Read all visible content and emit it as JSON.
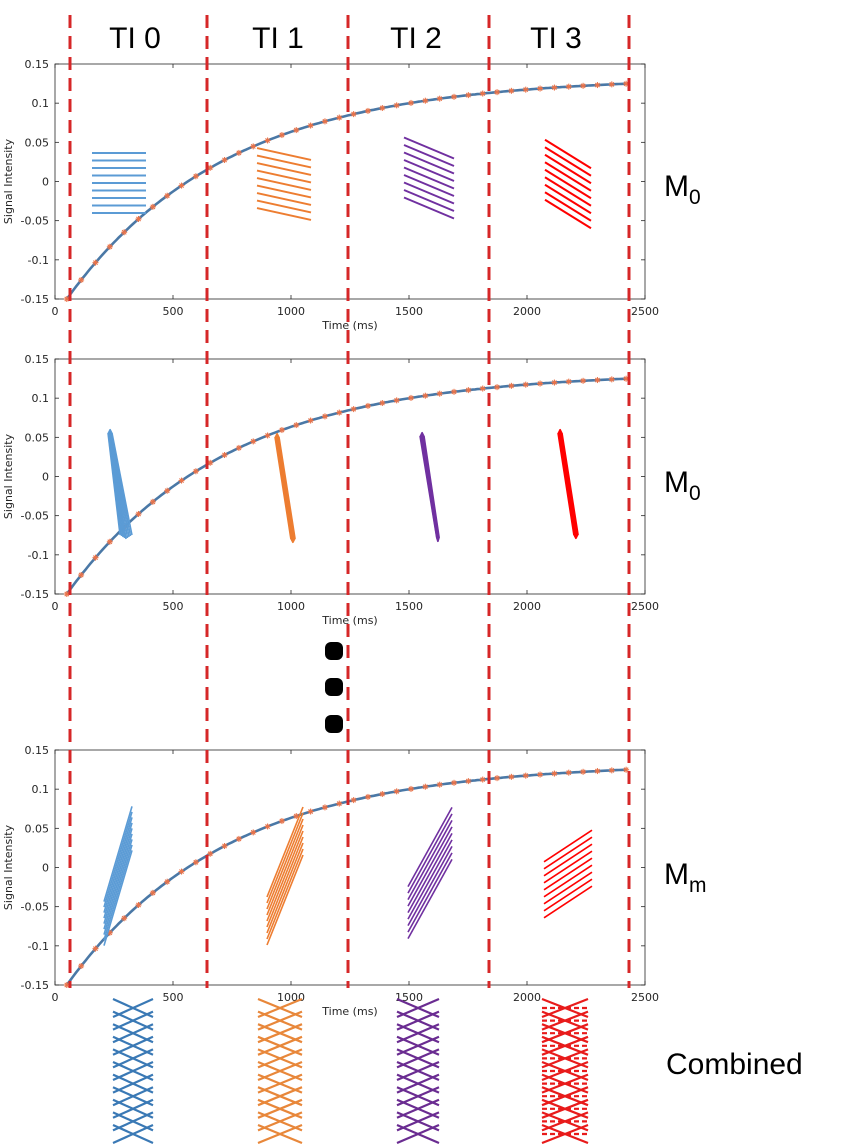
{
  "figure": {
    "ti_labels": [
      "TI 0",
      "TI 1",
      "TI 2",
      "TI 3"
    ],
    "ellipsis": "⋮",
    "combined_label": "Combined",
    "colors": {
      "curve": "#4a78a6",
      "markers": "#e8734a",
      "divider": "#d62728",
      "ti": [
        "#5b9bd5",
        "#ed7d31",
        "#7030a0",
        "#ff0000"
      ],
      "combined": [
        "#3a79b5",
        "#e8873a",
        "#6a2c91",
        "#e81b1b"
      ]
    }
  },
  "panels": [
    {
      "label_main": "M",
      "label_sub": "0",
      "pattern": "horizontal"
    },
    {
      "label_main": "M",
      "label_sub": "0",
      "pattern": "converging"
    },
    {
      "label_main": "M",
      "label_sub": "m",
      "pattern": "diagonal"
    }
  ],
  "chart_data": [
    {
      "type": "line",
      "xlabel": "Time (ms)",
      "ylabel": "Signal Intensity",
      "xlim": [
        0,
        2500
      ],
      "ylim": [
        -0.15,
        0.15
      ],
      "xticks": [
        "0",
        "500",
        "1000",
        "1500",
        "2000",
        "2500"
      ],
      "yticks": [
        "-0.15",
        "-0.1",
        "-0.05",
        "0",
        "0.05",
        "0.1",
        "0.15"
      ],
      "series": [
        {
          "x_start": 50,
          "x_end": 2420,
          "points": 40,
          "y_start": -0.15,
          "y_end": 0.126,
          "y_inf": 0.1335,
          "tau": 680
        }
      ],
      "dividers_x": [
        60,
        645,
        1245,
        1840,
        2425
      ]
    },
    {
      "type": "line",
      "xlabel": "Time (ms)",
      "ylabel": "Signal Intensity",
      "xlim": [
        0,
        2500
      ],
      "ylim": [
        -0.15,
        0.15
      ],
      "xticks": [
        "0",
        "500",
        "1000",
        "1500",
        "2000",
        "2500"
      ],
      "yticks": [
        "-0.15",
        "-0.1",
        "-0.05",
        "0",
        "0.05",
        "0.1",
        "0.15"
      ],
      "series": [
        {
          "x_start": 50,
          "x_end": 2420,
          "points": 40,
          "y_start": -0.15,
          "y_end": 0.126,
          "y_inf": 0.1335,
          "tau": 680
        }
      ],
      "dividers_x": [
        60,
        645,
        1245,
        1840,
        2425
      ]
    },
    {
      "type": "line",
      "xlabel": "Time (ms)",
      "ylabel": "Signal Intensity",
      "xlim": [
        0,
        2500
      ],
      "ylim": [
        -0.15,
        0.15
      ],
      "xticks": [
        "0",
        "500",
        "1000",
        "1500",
        "2000",
        "2500"
      ],
      "yticks": [
        "-0.15",
        "-0.1",
        "-0.05",
        "0",
        "0.05",
        "0.1",
        "0.15"
      ],
      "series": [
        {
          "x_start": 50,
          "x_end": 2420,
          "points": 40,
          "y_start": -0.15,
          "y_end": 0.126,
          "y_inf": 0.1335,
          "tau": 680
        }
      ],
      "dividers_x": [
        60,
        645,
        1245,
        1840,
        2425
      ]
    }
  ]
}
